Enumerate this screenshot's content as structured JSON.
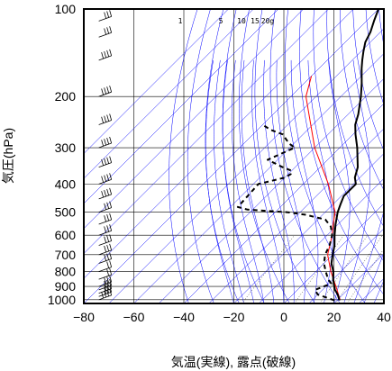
{
  "chart_data": {
    "type": "skew-t",
    "xlabel": "気温(実線), 露点(破線)",
    "ylabel": "気圧(hPa)",
    "x_ticks": [
      -80,
      -60,
      -40,
      -20,
      0,
      20,
      40
    ],
    "y_ticks": [
      100,
      200,
      300,
      400,
      500,
      600,
      700,
      800,
      900,
      1000
    ],
    "xlim": [
      -80,
      40
    ],
    "ylim": [
      1030,
      100
    ],
    "y_scale": "log",
    "mixing_ratio_labels": [
      "1",
      "5",
      "10",
      "15",
      "20g"
    ],
    "colors": {
      "temperature": "#000000",
      "dewpoint": "#000000",
      "parcel": "#ff0000",
      "dry_adiabat": "#0000ff",
      "moist_adiabat": "#0000ff",
      "mixing_ratio": "#000000",
      "grid": "#000000"
    },
    "temperature": {
      "p": [
        1005,
        960,
        925,
        880,
        850,
        800,
        750,
        700,
        650,
        600,
        550,
        500,
        470,
        440,
        400,
        380,
        350,
        300,
        270,
        250,
        230,
        200,
        180,
        160,
        150,
        140,
        130,
        120,
        110,
        100
      ],
      "t": [
        21,
        18,
        15,
        12,
        10,
        7,
        3,
        0,
        -3,
        -7,
        -11,
        -15,
        -17,
        -19,
        -19,
        -22,
        -25,
        -33,
        -39,
        -43,
        -46,
        -52,
        -57,
        -63,
        -66,
        -69,
        -72,
        -74,
        -77,
        -80
      ]
    },
    "dewpoint": {
      "p": [
        1005,
        960,
        925,
        880,
        850,
        800,
        750,
        700,
        650,
        600,
        560,
        530,
        510,
        500,
        490,
        480,
        400,
        380,
        370,
        360,
        350,
        330,
        300,
        290,
        280,
        270,
        260,
        250
      ],
      "t": [
        19,
        10,
        7,
        11,
        8,
        4,
        0,
        -3,
        -5,
        -8,
        -12,
        -17,
        -27,
        -35,
        -52,
        -57,
        -58,
        -50,
        -49,
        -50,
        -55,
        -64,
        -58,
        -62,
        -65,
        -68,
        -75,
        -80
      ]
    },
    "parcel": {
      "p": [
        1000,
        900,
        800,
        700,
        600,
        550,
        500,
        400,
        300,
        200,
        170
      ],
      "t": [
        21,
        14,
        6,
        -2,
        -8,
        -12,
        -16,
        -30,
        -50,
        -74,
        -80
      ]
    },
    "wind": {
      "x": -74,
      "p": [
        1000,
        975,
        950,
        925,
        900,
        850,
        800,
        750,
        700,
        650,
        600,
        550,
        500,
        450,
        400,
        350,
        300,
        250,
        200,
        150,
        125,
        110
      ],
      "barbs": [
        4,
        3,
        3,
        3,
        3,
        2,
        2,
        3,
        3,
        3,
        3,
        3,
        3,
        4,
        4,
        4,
        4,
        4,
        4,
        4,
        3,
        3
      ]
    }
  }
}
